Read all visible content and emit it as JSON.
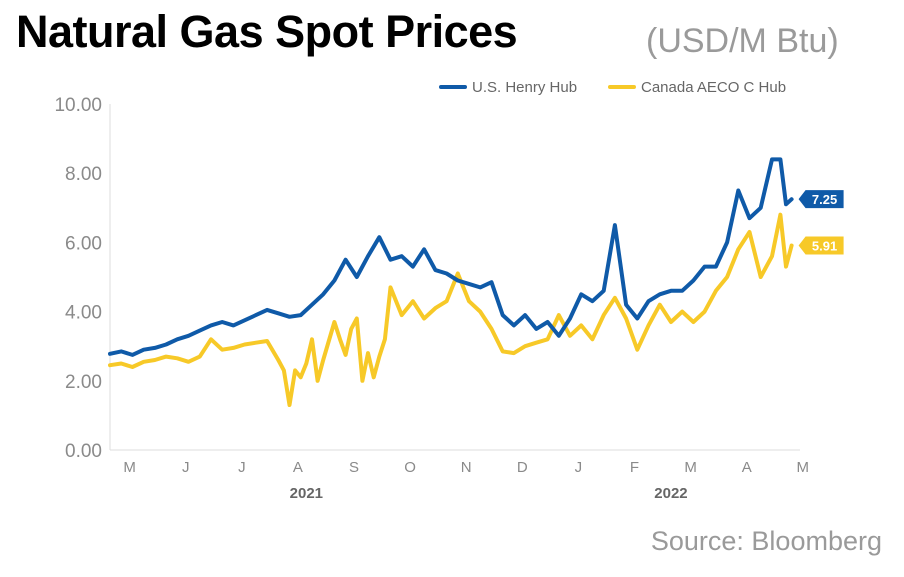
{
  "chart_data": {
    "type": "line",
    "title": "Natural Gas Spot Prices",
    "unit": "(USD/M Btu)",
    "source": "Source: Bloomberg",
    "xlabel": "",
    "ylabel": "",
    "ylim": [
      0,
      10
    ],
    "yticks": [
      "0.00",
      "2.00",
      "4.00",
      "6.00",
      "8.00",
      "10.00"
    ],
    "grid": false,
    "legend_position": "top-right",
    "x_month_ticks": [
      "M",
      "J",
      "J",
      "A",
      "S",
      "O",
      "N",
      "D",
      "J",
      "F",
      "M",
      "A",
      "M"
    ],
    "x_year_labels": [
      {
        "label": "2021",
        "month_index": 3.5
      },
      {
        "label": "2022",
        "month_index": 10
      }
    ],
    "x_domain": [
      0,
      12.3
    ],
    "series": [
      {
        "name": "U.S. Henry Hub",
        "color": "#0f5aa8",
        "end_label": "7.25",
        "x": [
          0,
          0.2,
          0.4,
          0.6,
          0.8,
          1.0,
          1.2,
          1.4,
          1.6,
          1.8,
          2.0,
          2.2,
          2.4,
          2.6,
          2.8,
          3.0,
          3.2,
          3.4,
          3.6,
          3.8,
          4.0,
          4.2,
          4.4,
          4.6,
          4.8,
          5.0,
          5.2,
          5.4,
          5.6,
          5.8,
          6.0,
          6.2,
          6.4,
          6.6,
          6.8,
          7.0,
          7.2,
          7.4,
          7.6,
          7.8,
          8.0,
          8.2,
          8.4,
          8.6,
          8.8,
          9.0,
          9.2,
          9.4,
          9.6,
          9.8,
          10.0,
          10.2,
          10.4,
          10.6,
          10.8,
          11.0,
          11.2,
          11.4,
          11.6,
          11.8,
          11.95,
          12.05,
          12.15
        ],
        "values": [
          2.78,
          2.85,
          2.75,
          2.9,
          2.95,
          3.05,
          3.2,
          3.3,
          3.45,
          3.6,
          3.7,
          3.6,
          3.75,
          3.9,
          4.05,
          3.95,
          3.85,
          3.9,
          4.2,
          4.5,
          4.9,
          5.5,
          5.0,
          5.6,
          6.15,
          5.5,
          5.6,
          5.3,
          5.8,
          5.2,
          5.1,
          4.9,
          4.8,
          4.7,
          4.85,
          3.9,
          3.6,
          3.9,
          3.5,
          3.7,
          3.3,
          3.8,
          4.5,
          4.3,
          4.6,
          6.5,
          4.2,
          3.8,
          4.3,
          4.5,
          4.6,
          4.6,
          4.9,
          5.3,
          5.3,
          6.0,
          7.5,
          6.7,
          7.0,
          8.4,
          8.4,
          7.1,
          7.25
        ]
      },
      {
        "name": "Canada AECO C Hub",
        "color": "#f7c928",
        "end_label": "5.91",
        "x": [
          0,
          0.2,
          0.4,
          0.6,
          0.8,
          1.0,
          1.2,
          1.4,
          1.6,
          1.8,
          2.0,
          2.2,
          2.4,
          2.6,
          2.8,
          3.0,
          3.1,
          3.2,
          3.3,
          3.4,
          3.5,
          3.6,
          3.7,
          3.8,
          4.0,
          4.1,
          4.2,
          4.3,
          4.4,
          4.5,
          4.6,
          4.7,
          4.8,
          4.9,
          5.0,
          5.2,
          5.4,
          5.6,
          5.8,
          6.0,
          6.2,
          6.4,
          6.6,
          6.8,
          7.0,
          7.2,
          7.4,
          7.6,
          7.8,
          8.0,
          8.2,
          8.4,
          8.6,
          8.8,
          9.0,
          9.2,
          9.4,
          9.6,
          9.8,
          10.0,
          10.2,
          10.4,
          10.6,
          10.8,
          11.0,
          11.2,
          11.4,
          11.6,
          11.8,
          11.95,
          12.05,
          12.15
        ],
        "values": [
          2.45,
          2.5,
          2.4,
          2.55,
          2.6,
          2.7,
          2.65,
          2.55,
          2.7,
          3.2,
          2.9,
          2.95,
          3.05,
          3.1,
          3.15,
          2.6,
          2.3,
          1.3,
          2.3,
          2.1,
          2.5,
          3.2,
          2.0,
          2.6,
          3.7,
          3.2,
          2.75,
          3.5,
          3.8,
          2.0,
          2.8,
          2.1,
          2.7,
          3.2,
          4.7,
          3.9,
          4.3,
          3.8,
          4.1,
          4.3,
          5.1,
          4.3,
          4.0,
          3.5,
          2.85,
          2.8,
          3.0,
          3.1,
          3.2,
          3.9,
          3.3,
          3.6,
          3.2,
          3.9,
          4.4,
          3.8,
          2.9,
          3.6,
          4.2,
          3.7,
          4.0,
          3.7,
          4.0,
          4.6,
          5.0,
          5.8,
          6.3,
          5.0,
          5.6,
          6.8,
          5.3,
          5.91
        ]
      }
    ]
  }
}
